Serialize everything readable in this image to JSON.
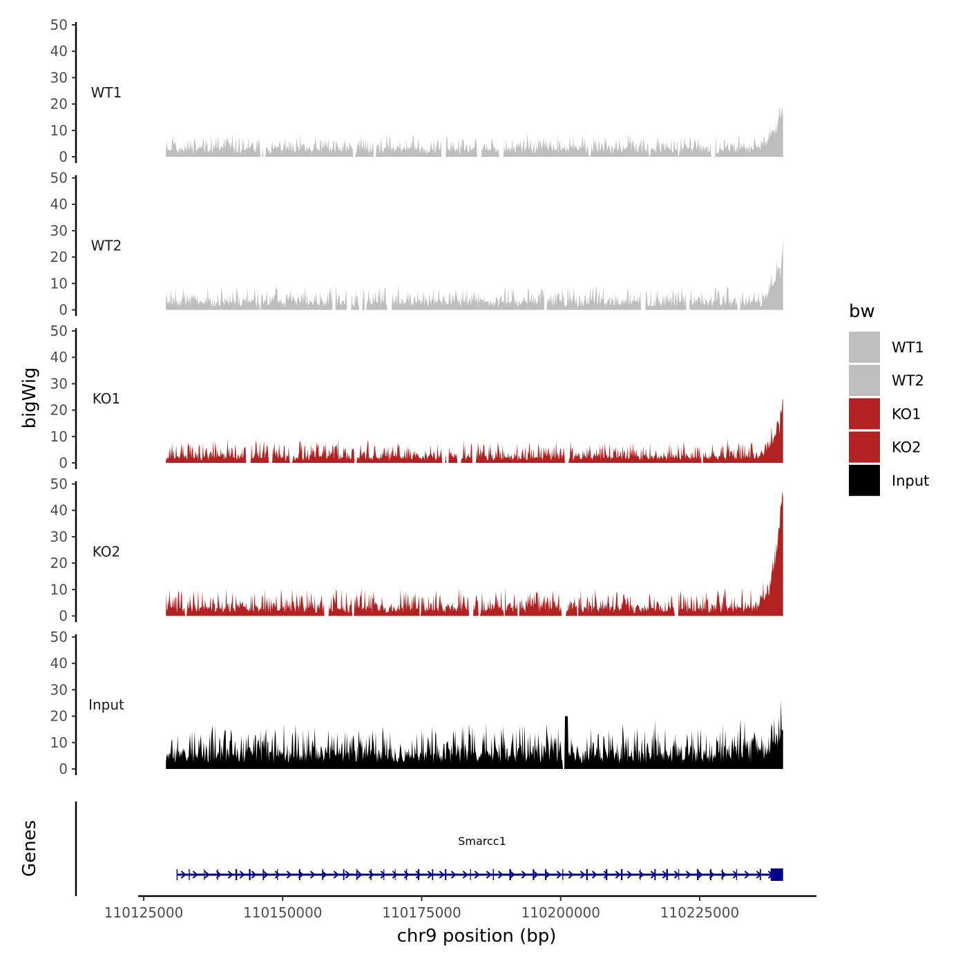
{
  "chart_data": {
    "type": "area",
    "ylabel": "bigWig",
    "xlabel": "chr9 position (bp)",
    "genes_label": "Genes",
    "region": [
      110129000,
      110240000
    ],
    "xlim": [
      110124000,
      110246000
    ],
    "x_ticks": [
      110125000,
      110150000,
      110175000,
      110200000,
      110225000
    ],
    "x_tick_labels": [
      "110125000",
      "110150000",
      "110175000",
      "110200000",
      "110225000"
    ],
    "ylim": [
      0,
      50
    ],
    "y_ticks": [
      0,
      10,
      20,
      30,
      40,
      50
    ],
    "y_tick_labels": [
      "0",
      "10",
      "20",
      "30",
      "40",
      "50"
    ],
    "tracks": [
      {
        "name": "WT1",
        "color": "#BEBEBE",
        "baseline": 2.5,
        "noise": 2.5,
        "peak_max": 19,
        "seed": 11
      },
      {
        "name": "WT2",
        "color": "#BEBEBE",
        "baseline": 2.5,
        "noise": 3.0,
        "peak_max": 23,
        "seed": 23
      },
      {
        "name": "KO1",
        "color": "#B22222",
        "baseline": 2.0,
        "noise": 3.0,
        "peak_max": 21,
        "seed": 37
      },
      {
        "name": "KO2",
        "color": "#B22222",
        "baseline": 2.5,
        "noise": 3.5,
        "peak_max": 49,
        "seed": 41
      },
      {
        "name": "Input",
        "color": "#000000",
        "baseline": 5.0,
        "noise": 5.5,
        "peak_max": 13,
        "seed": 53
      }
    ],
    "gene": {
      "name": "Smarcc1",
      "start": 110131000,
      "end": 110240000,
      "strand": "+",
      "color": "#00008B"
    },
    "legend": {
      "title": "bw",
      "position": "right",
      "entries": [
        {
          "label": "WT1",
          "color": "#BEBEBE"
        },
        {
          "label": "WT2",
          "color": "#BEBEBE"
        },
        {
          "label": "KO1",
          "color": "#B22222"
        },
        {
          "label": "KO2",
          "color": "#B22222"
        },
        {
          "label": "Input",
          "color": "#000000"
        }
      ]
    }
  }
}
